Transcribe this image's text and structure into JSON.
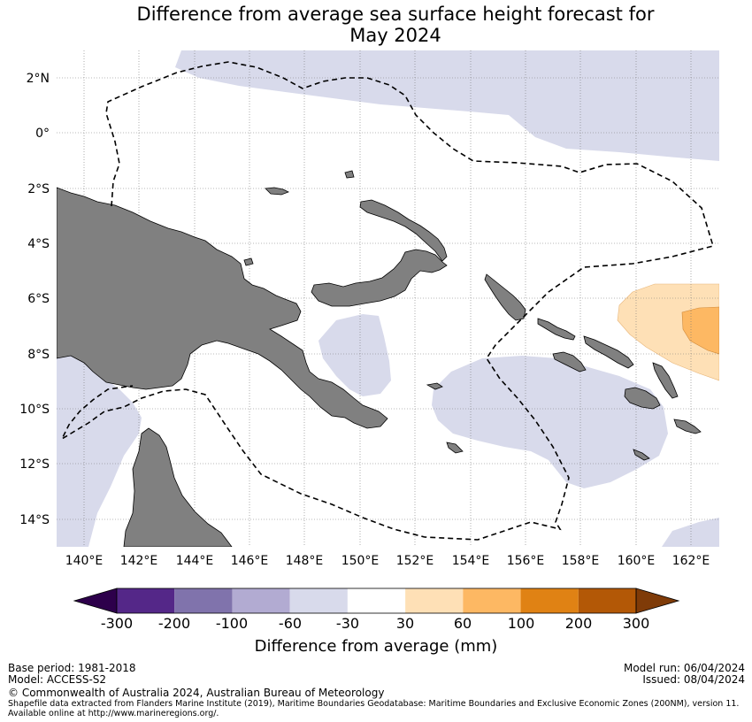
{
  "title": {
    "line1": "Difference from average sea surface height forecast for",
    "line2": "May 2024"
  },
  "map": {
    "lon_range": [
      139,
      163
    ],
    "lat_range": [
      -15,
      3
    ],
    "lat_ticks": [
      "2°N",
      "0°",
      "2°S",
      "4°S",
      "6°S",
      "8°S",
      "10°S",
      "12°S",
      "14°S"
    ],
    "lon_ticks": [
      "140°E",
      "142°E",
      "144°E",
      "146°E",
      "148°E",
      "150°E",
      "152°E",
      "154°E",
      "156°E",
      "158°E",
      "160°E",
      "162°E"
    ],
    "gridlines": true,
    "land_color": "#808080",
    "eez_boundary": "dashed black line"
  },
  "colorbar": {
    "labels": [
      "-300",
      "-200",
      "-100",
      "-60",
      "-30",
      "30",
      "60",
      "100",
      "200",
      "300"
    ],
    "colors": [
      "#2d004b",
      "#542788",
      "#8073ac",
      "#b2abd2",
      "#d8daeb",
      "#ffffff",
      "#fee0b6",
      "#fdb863",
      "#e08214",
      "#b35806",
      "#7f3b08"
    ],
    "title": "Difference from average (mm)"
  },
  "footer": {
    "base_period": "Base period: 1981-2018",
    "model": "Model: ACCESS-S2",
    "model_run": "Model run: 06/04/2024",
    "issued": "Issued: 08/04/2024",
    "copyright": "© Commonwealth of Australia 2024, Australian Bureau of Meteorology",
    "shapefile_line1": "Shapefile data extracted from Flanders Marine Institute (2019), Maritime Boundaries Geodatabase: Maritime Boundaries and Exclusive Economic Zones (200NM), version 11.",
    "shapefile_line2": "Available online at http://www.marineregions.org/."
  }
}
